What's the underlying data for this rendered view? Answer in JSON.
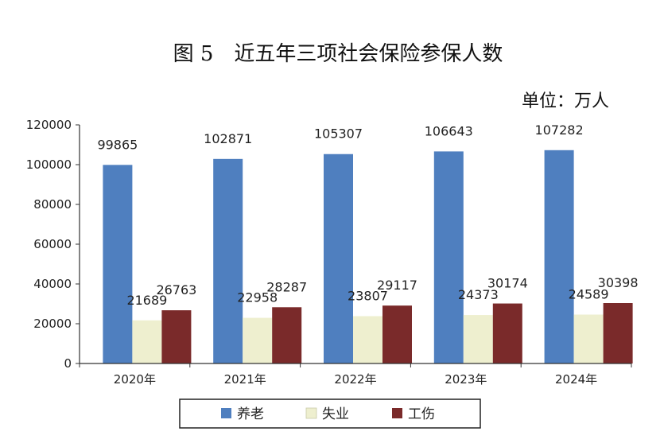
{
  "chart_data": {
    "type": "bar",
    "title": "图 5　近五年三项社会保险参保人数",
    "unit_label": "单位：万人",
    "xlabel": "",
    "ylabel": "",
    "categories": [
      "2020年",
      "2021年",
      "2022年",
      "2023年",
      "2024年"
    ],
    "ylim": [
      0,
      120000
    ],
    "yticks": [
      0,
      20000,
      40000,
      60000,
      80000,
      100000,
      120000
    ],
    "grid": false,
    "legend_position": "bottom",
    "series": [
      {
        "name": "养老",
        "color": "#4f7fbf",
        "values": [
          99865,
          102871,
          105307,
          106643,
          107282
        ]
      },
      {
        "name": "失业",
        "color": "#eeefcf",
        "values": [
          21689,
          22958,
          23807,
          24373,
          24589
        ]
      },
      {
        "name": "工伤",
        "color": "#7a2a2a",
        "values": [
          26763,
          28287,
          29117,
          30174,
          30398
        ]
      }
    ]
  }
}
